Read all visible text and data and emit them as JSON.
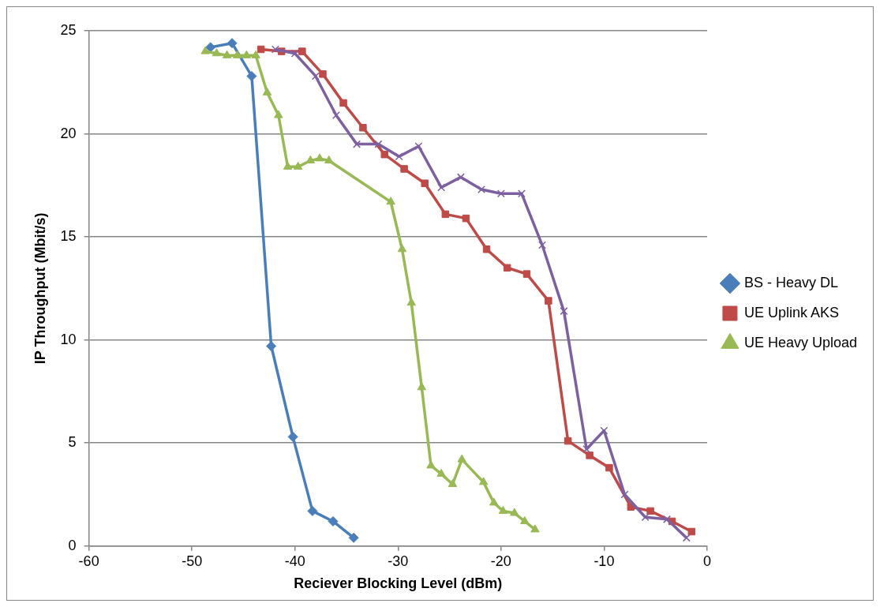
{
  "chart_data": {
    "type": "line",
    "xlabel": "Reciever Blocking Level (dBm)",
    "ylabel": "IP Throughput (Mbit/s)",
    "xlim": [
      -60,
      0
    ],
    "xticks": [
      -60,
      -50,
      -40,
      -30,
      -20,
      -10,
      0
    ],
    "ylim": [
      0,
      25
    ],
    "yticks": [
      0,
      5,
      10,
      15,
      20,
      25
    ],
    "grid": "y",
    "legend": "right",
    "line_style": "solid",
    "series": [
      {
        "name": "BS - Heavy DL",
        "color": "#4a7ebb",
        "marker": "diamond",
        "x": [
          -48.2,
          -46.1,
          -44.2,
          -42.3,
          -40.2,
          -38.3,
          -36.3,
          -34.3
        ],
        "values": [
          24.2,
          24.4,
          22.8,
          9.7,
          5.3,
          1.7,
          1.2,
          0.4
        ]
      },
      {
        "name": "UE Uplink AKS",
        "color": "#be4b48",
        "marker": "square",
        "x": [
          -43.3,
          -41.3,
          -39.3,
          -37.3,
          -35.3,
          -33.4,
          -31.3,
          -29.4,
          -27.4,
          -25.4,
          -23.4,
          -21.4,
          -19.4,
          -17.5,
          -15.4,
          -13.5,
          -11.4,
          -9.5,
          -7.4,
          -5.5,
          -3.4,
          -1.5
        ],
        "values": [
          24.1,
          24.0,
          24.0,
          22.9,
          21.5,
          20.3,
          19.0,
          18.3,
          17.6,
          16.1,
          15.9,
          14.4,
          13.5,
          13.2,
          11.9,
          5.1,
          4.4,
          3.8,
          1.9,
          1.7,
          1.2,
          0.7
        ]
      },
      {
        "name": "UE Heavy Upload",
        "color": "#98b954",
        "marker": "triangle",
        "x": [
          -48.7,
          -47.6,
          -46.6,
          -45.6,
          -44.7,
          -43.8,
          -42.7,
          -41.6,
          -40.7,
          -39.7,
          -38.5,
          -37.6,
          -36.7,
          -30.7,
          -29.6,
          -28.7,
          -27.7,
          -26.8,
          -25.8,
          -24.7,
          -23.8,
          -21.7,
          -20.7,
          -19.8,
          -18.7,
          -17.7,
          -16.7
        ],
        "values": [
          24.0,
          23.9,
          23.8,
          23.8,
          23.8,
          23.8,
          22.0,
          20.9,
          18.4,
          18.4,
          18.7,
          18.8,
          18.7,
          16.7,
          14.4,
          11.8,
          7.7,
          3.9,
          3.5,
          3.0,
          4.2,
          3.1,
          2.1,
          1.7,
          1.6,
          1.2,
          0.8
        ]
      },
      {
        "color": "#7d60a0",
        "marker": "cross",
        "x": [
          -41.9,
          -40.0,
          -38.0,
          -36.0,
          -34.0,
          -31.9,
          -29.9,
          -28.0,
          -25.8,
          -23.9,
          -21.9,
          -20.0,
          -18.0,
          -16.0,
          -13.9,
          -11.7,
          -10.0,
          -8.0,
          -6.0,
          -3.9,
          -2.0
        ],
        "values": [
          24.1,
          23.9,
          22.8,
          20.9,
          19.5,
          19.5,
          18.9,
          19.4,
          17.4,
          17.9,
          17.3,
          17.1,
          17.1,
          14.6,
          11.4,
          4.7,
          5.6,
          2.5,
          1.4,
          1.3,
          0.4
        ]
      }
    ]
  }
}
